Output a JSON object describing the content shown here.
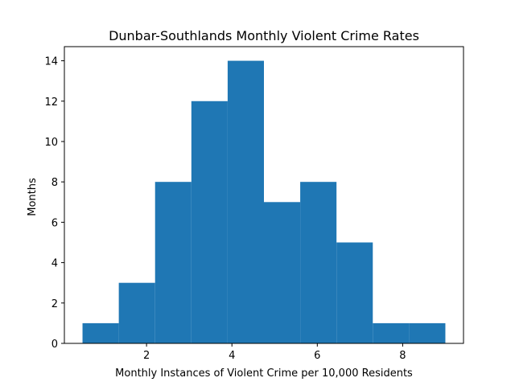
{
  "chart_data": {
    "type": "bar",
    "title": "Dunbar-Southlands Monthly Violent Crime Rates",
    "xlabel": "Monthly Instances of Violent Crime per 10,000 Residents",
    "ylabel": "Months",
    "bins": [
      {
        "x0": 0.5,
        "x1": 1.35,
        "value": 1
      },
      {
        "x0": 1.35,
        "x1": 2.2,
        "value": 3
      },
      {
        "x0": 2.2,
        "x1": 3.05,
        "value": 8
      },
      {
        "x0": 3.05,
        "x1": 3.9,
        "value": 12
      },
      {
        "x0": 3.9,
        "x1": 4.75,
        "value": 14
      },
      {
        "x0": 4.75,
        "x1": 5.6,
        "value": 7
      },
      {
        "x0": 5.6,
        "x1": 6.45,
        "value": 8
      },
      {
        "x0": 6.45,
        "x1": 7.3,
        "value": 5
      },
      {
        "x0": 7.3,
        "x1": 8.15,
        "value": 1
      },
      {
        "x0": 8.15,
        "x1": 9.0,
        "value": 1
      }
    ],
    "xlim": [
      0.075,
      9.425
    ],
    "ylim": [
      0,
      14.7
    ],
    "xticks": [
      2,
      4,
      6,
      8
    ],
    "yticks": [
      0,
      2,
      4,
      6,
      8,
      10,
      12,
      14
    ],
    "grid": false,
    "colors": {
      "bar": "#1f77b4"
    }
  }
}
